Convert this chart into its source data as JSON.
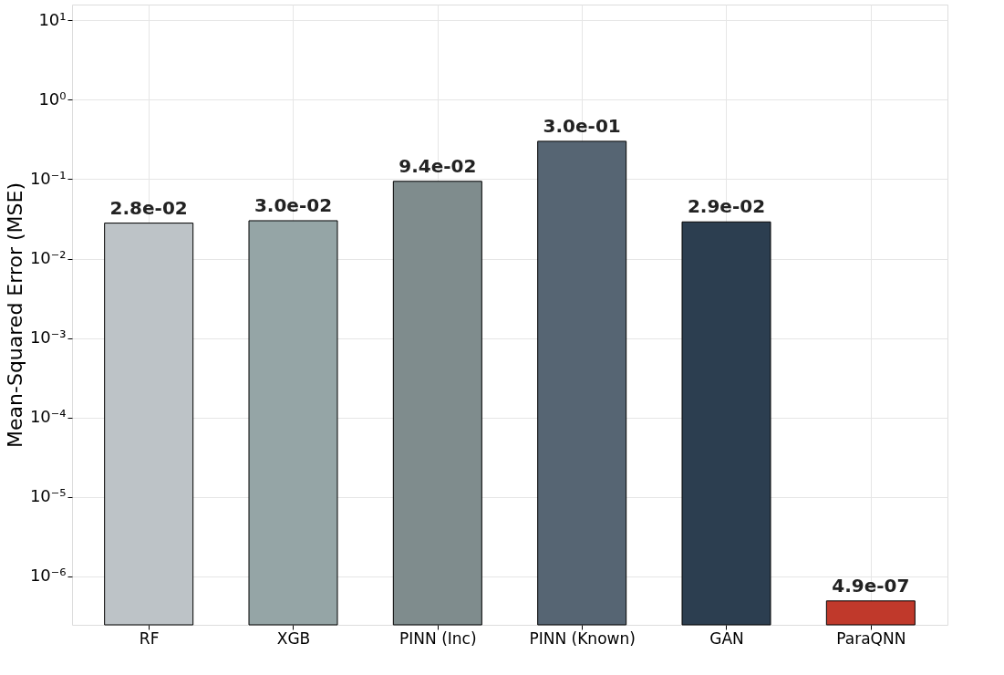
{
  "chart_data": {
    "type": "bar",
    "ylabel": "Mean-Squared Error (MSE)",
    "categories": [
      "RF",
      "XGB",
      "PINN (Inc)",
      "PINN (Known)",
      "GAN",
      "ParaQNN"
    ],
    "values": [
      0.028,
      0.03,
      0.094,
      0.3,
      0.029,
      4.9e-07
    ],
    "colors": [
      "#bdc3c7",
      "#95a5a6",
      "#7f8c8d",
      "#566573",
      "#2c3e50",
      "#c0392b"
    ],
    "value_labels": [
      "2.8e-02",
      "3.0e-02",
      "9.4e-02",
      "3.0e-01",
      "2.9e-02",
      "4.9e-07"
    ],
    "log": true,
    "ylim": [
      2.45e-07,
      15.8
    ],
    "yticks": [
      {
        "value": 1e-06,
        "label": "10⁻⁶"
      },
      {
        "value": 1e-05,
        "label": "10⁻⁵"
      },
      {
        "value": 0.0001,
        "label": "10⁻⁴"
      },
      {
        "value": 0.001,
        "label": "10⁻³"
      },
      {
        "value": 0.01,
        "label": "10⁻²"
      },
      {
        "value": 0.1,
        "label": "10⁻¹"
      },
      {
        "value": 1,
        "label": "10⁰"
      },
      {
        "value": 10,
        "label": "10¹"
      }
    ],
    "grid": true
  }
}
